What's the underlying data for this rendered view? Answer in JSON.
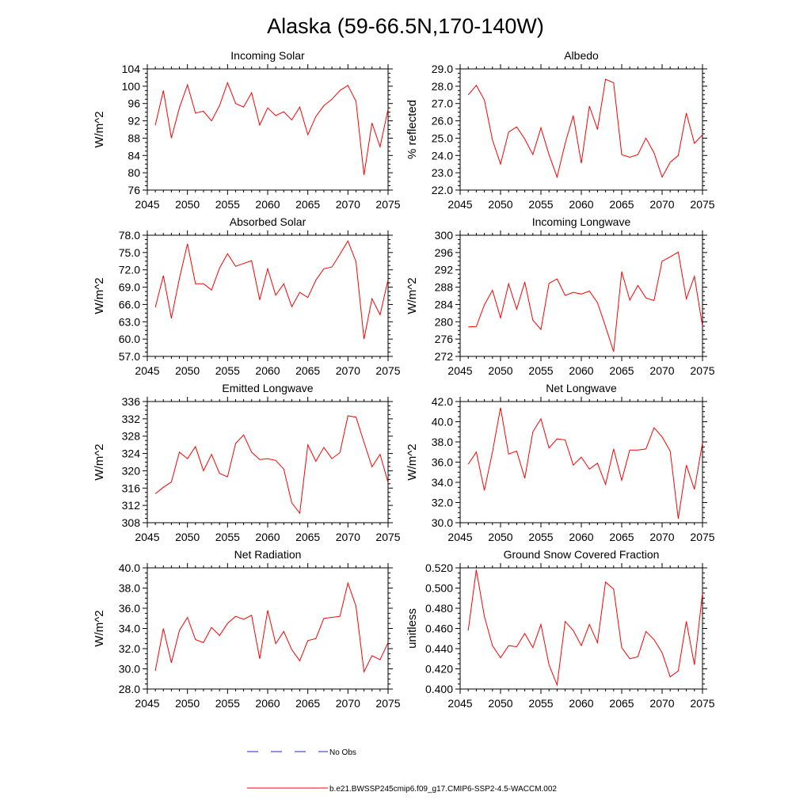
{
  "figure": {
    "title": "Alaska (59-66.5N,170-140W)"
  },
  "legend": {
    "entries": [
      {
        "label": "No Obs",
        "color": "#2222cc",
        "style": "dashed"
      },
      {
        "label": "b.e21.BWSSP245cmip6.f09_g17.CMIP6-SSP2-4.5-WACCM.002",
        "color": "#ff0000",
        "style": "solid"
      }
    ]
  },
  "colors": {
    "series": "#ff0000",
    "obs": "#2222cc",
    "axis": "#000000"
  },
  "chart_data": [
    {
      "type": "line",
      "title": "Incoming Solar",
      "ylabel": "W/m^2",
      "xlim": [
        2045,
        2075
      ],
      "ylim": [
        76,
        104
      ],
      "yticks": [
        "76",
        "80",
        "84",
        "88",
        "92",
        "96",
        "100",
        "104"
      ],
      "yticks_values": [
        76,
        80,
        84,
        88,
        92,
        96,
        100,
        104
      ],
      "xticks": [
        "2045",
        "2050",
        "2055",
        "2060",
        "2065",
        "2070",
        "2075"
      ],
      "xticks_values": [
        2045,
        2050,
        2055,
        2060,
        2065,
        2070,
        2075
      ],
      "x": [
        2046,
        2047,
        2048,
        2049,
        2050,
        2051,
        2052,
        2053,
        2054,
        2055,
        2056,
        2057,
        2058,
        2059,
        2060,
        2061,
        2062,
        2063,
        2064,
        2065,
        2066,
        2067,
        2068,
        2069,
        2070,
        2071,
        2072,
        2073,
        2074,
        2075
      ],
      "series": [
        {
          "values": [
            91,
            99,
            88,
            95,
            100.3,
            93.8,
            94.2,
            92,
            95.5,
            100.8,
            96,
            95.2,
            98.5,
            91,
            95,
            93.2,
            94.1,
            92.2,
            95.2,
            88.8,
            93,
            95.5,
            97,
            99,
            100.2,
            96.5,
            79.5,
            91.5,
            86,
            94.7
          ]
        }
      ]
    },
    {
      "type": "line",
      "title": "Albedo",
      "ylabel": "% reflected",
      "xlim": [
        2045,
        2075
      ],
      "ylim": [
        22,
        29
      ],
      "yticks": [
        "22.0",
        "23.0",
        "24.0",
        "25.0",
        "26.0",
        "27.0",
        "28.0",
        "29.0"
      ],
      "yticks_values": [
        22,
        23,
        24,
        25,
        26,
        27,
        28,
        29
      ],
      "xticks": [
        "2045",
        "2050",
        "2055",
        "2060",
        "2065",
        "2070",
        "2075"
      ],
      "xticks_values": [
        2045,
        2050,
        2055,
        2060,
        2065,
        2070,
        2075
      ],
      "x": [
        2046,
        2047,
        2048,
        2049,
        2050,
        2051,
        2052,
        2053,
        2054,
        2055,
        2056,
        2057,
        2058,
        2059,
        2060,
        2061,
        2062,
        2063,
        2064,
        2065,
        2066,
        2067,
        2068,
        2069,
        2070,
        2071,
        2072,
        2073,
        2074,
        2075
      ],
      "series": [
        {
          "values": [
            27.5,
            28.05,
            27.2,
            24.9,
            23.5,
            25.35,
            25.65,
            24.95,
            24.05,
            25.6,
            24.05,
            22.75,
            24.7,
            26.3,
            23.55,
            26.85,
            25.5,
            28.4,
            28.2,
            24.05,
            23.9,
            24.05,
            25,
            24.15,
            22.75,
            23.6,
            24,
            26.45,
            24.7,
            25.2
          ]
        }
      ]
    },
    {
      "type": "line",
      "title": "Absorbed Solar",
      "ylabel": "W/m^2",
      "xlim": [
        2045,
        2075
      ],
      "ylim": [
        57,
        78
      ],
      "yticks": [
        "57.0",
        "60.0",
        "63.0",
        "66.0",
        "69.0",
        "72.0",
        "75.0",
        "78.0"
      ],
      "yticks_values": [
        57,
        60,
        63,
        66,
        69,
        72,
        75,
        78
      ],
      "xticks": [
        "2045",
        "2050",
        "2055",
        "2060",
        "2065",
        "2070",
        "2075"
      ],
      "xticks_values": [
        2045,
        2050,
        2055,
        2060,
        2065,
        2070,
        2075
      ],
      "x": [
        2046,
        2047,
        2048,
        2049,
        2050,
        2051,
        2052,
        2053,
        2054,
        2055,
        2056,
        2057,
        2058,
        2059,
        2060,
        2061,
        2062,
        2063,
        2064,
        2065,
        2066,
        2067,
        2068,
        2069,
        2070,
        2071,
        2072,
        2073,
        2074,
        2075
      ],
      "series": [
        {
          "values": [
            65.5,
            71,
            63.6,
            70.5,
            76.5,
            69.6,
            69.6,
            68.5,
            72.3,
            74.8,
            72.6,
            73.1,
            73.6,
            66.8,
            72.2,
            67.6,
            69.6,
            65.6,
            68.1,
            67.2,
            70.2,
            72.2,
            72.5,
            74.7,
            77,
            73.4,
            60,
            67,
            64.2,
            70.3
          ]
        }
      ]
    },
    {
      "type": "line",
      "title": "Incoming Longwave",
      "ylabel": "W/m^2",
      "xlim": [
        2045,
        2075
      ],
      "ylim": [
        272,
        300
      ],
      "yticks": [
        "272",
        "276",
        "280",
        "284",
        "288",
        "292",
        "296",
        "300"
      ],
      "yticks_values": [
        272,
        276,
        280,
        284,
        288,
        292,
        296,
        300
      ],
      "xticks": [
        "2045",
        "2050",
        "2055",
        "2060",
        "2065",
        "2070",
        "2075"
      ],
      "xticks_values": [
        2045,
        2050,
        2055,
        2060,
        2065,
        2070,
        2075
      ],
      "x": [
        2046,
        2047,
        2048,
        2049,
        2050,
        2051,
        2052,
        2053,
        2054,
        2055,
        2056,
        2057,
        2058,
        2059,
        2060,
        2061,
        2062,
        2063,
        2064,
        2065,
        2066,
        2067,
        2068,
        2069,
        2070,
        2071,
        2072,
        2073,
        2074,
        2075
      ],
      "series": [
        {
          "values": [
            278.8,
            278.9,
            283.9,
            287.3,
            280.9,
            288.8,
            282.9,
            289.2,
            280.4,
            278.2,
            288.9,
            289.9,
            286.1,
            286.8,
            286.4,
            287.1,
            284.4,
            278.9,
            273.1,
            291.6,
            285,
            288.4,
            285.5,
            284.9,
            294,
            295,
            296.1,
            285.3,
            290.5,
            279
          ]
        }
      ]
    },
    {
      "type": "line",
      "title": "Emitted Longwave",
      "ylabel": "W/m^2",
      "xlim": [
        2045,
        2075
      ],
      "ylim": [
        308,
        336
      ],
      "yticks": [
        "308",
        "312",
        "316",
        "320",
        "324",
        "328",
        "332",
        "336"
      ],
      "yticks_values": [
        308,
        312,
        316,
        320,
        324,
        328,
        332,
        336
      ],
      "xticks": [
        "2045",
        "2050",
        "2055",
        "2060",
        "2065",
        "2070",
        "2075"
      ],
      "xticks_values": [
        2045,
        2050,
        2055,
        2060,
        2065,
        2070,
        2075
      ],
      "x": [
        2046,
        2047,
        2048,
        2049,
        2050,
        2051,
        2052,
        2053,
        2054,
        2055,
        2056,
        2057,
        2058,
        2059,
        2060,
        2061,
        2062,
        2063,
        2064,
        2065,
        2066,
        2067,
        2068,
        2069,
        2070,
        2071,
        2072,
        2073,
        2074,
        2075
      ],
      "series": [
        {
          "values": [
            314.7,
            316.2,
            317.4,
            324.3,
            322.8,
            325.6,
            320,
            323.8,
            319.4,
            318.6,
            326.3,
            328.3,
            324.3,
            322.6,
            322.8,
            322.4,
            320.4,
            312.6,
            310.2,
            326,
            322.2,
            325.4,
            322.8,
            324.2,
            332.7,
            332.4,
            326.6,
            320.9,
            323.8,
            317.3
          ]
        }
      ]
    },
    {
      "type": "line",
      "title": "Net Longwave",
      "ylabel": "W/m^2",
      "xlim": [
        2045,
        2075
      ],
      "ylim": [
        30,
        42
      ],
      "yticks": [
        "30.0",
        "32.0",
        "34.0",
        "36.0",
        "38.0",
        "40.0",
        "42.0"
      ],
      "yticks_values": [
        30,
        32,
        34,
        36,
        38,
        40,
        42
      ],
      "xticks": [
        "2045",
        "2050",
        "2055",
        "2060",
        "2065",
        "2070",
        "2075"
      ],
      "xticks_values": [
        2045,
        2050,
        2055,
        2060,
        2065,
        2070,
        2075
      ],
      "x": [
        2046,
        2047,
        2048,
        2049,
        2050,
        2051,
        2052,
        2053,
        2054,
        2055,
        2056,
        2057,
        2058,
        2059,
        2060,
        2061,
        2062,
        2063,
        2064,
        2065,
        2066,
        2067,
        2068,
        2069,
        2070,
        2071,
        2072,
        2073,
        2074,
        2075
      ],
      "series": [
        {
          "values": [
            35.8,
            37,
            33.2,
            37,
            41.4,
            36.8,
            37.1,
            34.4,
            39,
            40.3,
            37.4,
            38.3,
            38.2,
            35.7,
            36.5,
            35.3,
            35.9,
            33.8,
            37.3,
            34.2,
            37.2,
            37.2,
            37.3,
            39.4,
            38.5,
            37.1,
            30.4,
            35.7,
            33.3,
            37.9
          ]
        }
      ]
    },
    {
      "type": "line",
      "title": "Net Radiation",
      "ylabel": "W/m^2",
      "xlim": [
        2045,
        2075
      ],
      "ylim": [
        28,
        40
      ],
      "yticks": [
        "28.0",
        "30.0",
        "32.0",
        "34.0",
        "36.0",
        "38.0",
        "40.0"
      ],
      "yticks_values": [
        28,
        30,
        32,
        34,
        36,
        38,
        40
      ],
      "xticks": [
        "2045",
        "2050",
        "2055",
        "2060",
        "2065",
        "2070",
        "2075"
      ],
      "xticks_values": [
        2045,
        2050,
        2055,
        2060,
        2065,
        2070,
        2075
      ],
      "x": [
        2046,
        2047,
        2048,
        2049,
        2050,
        2051,
        2052,
        2053,
        2054,
        2055,
        2056,
        2057,
        2058,
        2059,
        2060,
        2061,
        2062,
        2063,
        2064,
        2065,
        2066,
        2067,
        2068,
        2069,
        2070,
        2071,
        2072,
        2073,
        2074,
        2075
      ],
      "series": [
        {
          "values": [
            29.8,
            34,
            30.6,
            33.8,
            35.1,
            32.9,
            32.6,
            34.1,
            33.3,
            34.5,
            35.2,
            34.9,
            35.3,
            31,
            35.8,
            32.5,
            33.7,
            31.9,
            30.8,
            32.8,
            33,
            35,
            35.1,
            35.2,
            38.5,
            36.2,
            29.7,
            31.3,
            30.9,
            32.6
          ]
        }
      ]
    },
    {
      "type": "line",
      "title": "Ground Snow Covered Fraction",
      "ylabel": "unitless",
      "xlim": [
        2045,
        2075
      ],
      "ylim": [
        0.4,
        0.52
      ],
      "yticks": [
        "0.400",
        "0.420",
        "0.440",
        "0.460",
        "0.480",
        "0.500",
        "0.520"
      ],
      "yticks_values": [
        0.4,
        0.42,
        0.44,
        0.46,
        0.48,
        0.5,
        0.52
      ],
      "xticks": [
        "2045",
        "2050",
        "2055",
        "2060",
        "2065",
        "2070",
        "2075"
      ],
      "xticks_values": [
        2045,
        2050,
        2055,
        2060,
        2065,
        2070,
        2075
      ],
      "x": [
        2046,
        2047,
        2048,
        2049,
        2050,
        2051,
        2052,
        2053,
        2054,
        2055,
        2056,
        2057,
        2058,
        2059,
        2060,
        2061,
        2062,
        2063,
        2064,
        2065,
        2066,
        2067,
        2068,
        2069,
        2070,
        2071,
        2072,
        2073,
        2074,
        2075
      ],
      "series": [
        {
          "values": [
            0.458,
            0.518,
            0.472,
            0.443,
            0.431,
            0.443,
            0.442,
            0.455,
            0.441,
            0.464,
            0.424,
            0.404,
            0.467,
            0.458,
            0.443,
            0.464,
            0.446,
            0.506,
            0.499,
            0.441,
            0.43,
            0.432,
            0.457,
            0.449,
            0.436,
            0.412,
            0.418,
            0.467,
            0.424,
            0.495
          ]
        }
      ]
    }
  ]
}
